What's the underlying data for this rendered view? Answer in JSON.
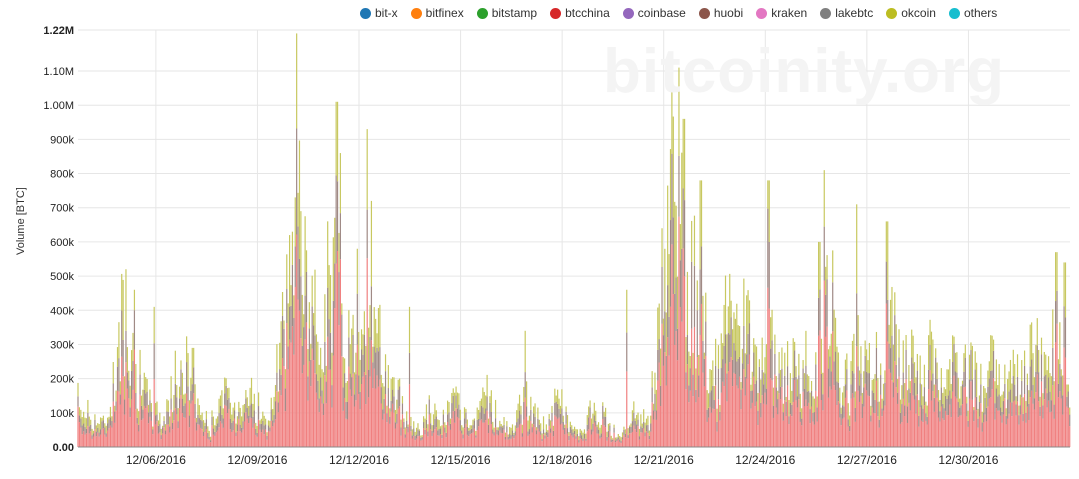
{
  "watermark": "bitcoinity.org",
  "chart_data": {
    "type": "bar",
    "stacked": true,
    "ylabel": "Volume [BTC]",
    "xlabel": "",
    "title": "",
    "ylim": [
      0,
      1220000
    ],
    "y_ticks": [
      "0.00",
      "100k",
      "200k",
      "300k",
      "400k",
      "500k",
      "600k",
      "700k",
      "800k",
      "900k",
      "1.00M",
      "1.10M",
      "1.22M"
    ],
    "x_ticks": [
      "12/06/2016",
      "12/09/2016",
      "12/12/2016",
      "12/15/2016",
      "12/18/2016",
      "12/21/2016",
      "12/24/2016",
      "12/27/2016",
      "12/30/2016"
    ],
    "x_tick_days": [
      4,
      7,
      10,
      13,
      16,
      19,
      22,
      25,
      28
    ],
    "x_range_days": [
      1.7,
      31.0
    ],
    "grid": true,
    "legend_position": "top",
    "legend": [
      {
        "name": "bit-x",
        "color": "#1f77b4"
      },
      {
        "name": "bitfinex",
        "color": "#ff7f0e"
      },
      {
        "name": "bitstamp",
        "color": "#2ca02c"
      },
      {
        "name": "btcchina",
        "color": "#d62728"
      },
      {
        "name": "coinbase",
        "color": "#9467bd"
      },
      {
        "name": "huobi",
        "color": "#8c564b"
      },
      {
        "name": "kraken",
        "color": "#e377c2"
      },
      {
        "name": "lakebtc",
        "color": "#7f7f7f"
      },
      {
        "name": "okcoin",
        "color": "#bcbd22"
      },
      {
        "name": "others",
        "color": "#17becf"
      }
    ],
    "stack_colors": {
      "btcchina": "#f08080",
      "huobi": "#a08a85",
      "okcoin": "#c8c860"
    },
    "hourly_envelope": [
      {
        "day": 1.7,
        "total": 150000
      },
      {
        "day": 2.0,
        "total": 110000
      },
      {
        "day": 2.5,
        "total": 70000
      },
      {
        "day": 2.9,
        "total": 300000
      },
      {
        "day": 3.1,
        "total": 480000
      },
      {
        "day": 3.4,
        "total": 250000
      },
      {
        "day": 3.8,
        "total": 140000
      },
      {
        "day": 4.2,
        "total": 90000
      },
      {
        "day": 4.6,
        "total": 220000
      },
      {
        "day": 4.9,
        "total": 260000
      },
      {
        "day": 5.3,
        "total": 130000
      },
      {
        "day": 5.6,
        "total": 60000
      },
      {
        "day": 5.9,
        "total": 180000
      },
      {
        "day": 6.3,
        "total": 120000
      },
      {
        "day": 6.7,
        "total": 200000
      },
      {
        "day": 7.0,
        "total": 130000
      },
      {
        "day": 7.3,
        "total": 60000
      },
      {
        "day": 7.6,
        "total": 250000
      },
      {
        "day": 7.9,
        "total": 450000
      },
      {
        "day": 8.2,
        "total": 800000
      },
      {
        "day": 8.4,
        "total": 520000
      },
      {
        "day": 8.7,
        "total": 400000
      },
      {
        "day": 9.0,
        "total": 480000
      },
      {
        "day": 9.3,
        "total": 650000
      },
      {
        "day": 9.5,
        "total": 420000
      },
      {
        "day": 9.8,
        "total": 320000
      },
      {
        "day": 10.1,
        "total": 550000
      },
      {
        "day": 10.4,
        "total": 380000
      },
      {
        "day": 10.6,
        "total": 320000
      },
      {
        "day": 10.9,
        "total": 200000
      },
      {
        "day": 11.2,
        "total": 150000
      },
      {
        "day": 11.5,
        "total": 90000
      },
      {
        "day": 11.8,
        "total": 60000
      },
      {
        "day": 12.1,
        "total": 130000
      },
      {
        "day": 12.4,
        "total": 70000
      },
      {
        "day": 12.8,
        "total": 150000
      },
      {
        "day": 13.1,
        "total": 90000
      },
      {
        "day": 13.4,
        "total": 60000
      },
      {
        "day": 13.8,
        "total": 180000
      },
      {
        "day": 14.1,
        "total": 90000
      },
      {
        "day": 14.5,
        "total": 50000
      },
      {
        "day": 14.9,
        "total": 160000
      },
      {
        "day": 15.2,
        "total": 100000
      },
      {
        "day": 15.5,
        "total": 70000
      },
      {
        "day": 15.9,
        "total": 160000
      },
      {
        "day": 16.3,
        "total": 60000
      },
      {
        "day": 16.6,
        "total": 40000
      },
      {
        "day": 17.0,
        "total": 150000
      },
      {
        "day": 17.4,
        "total": 60000
      },
      {
        "day": 17.8,
        "total": 40000
      },
      {
        "day": 18.2,
        "total": 120000
      },
      {
        "day": 18.6,
        "total": 90000
      },
      {
        "day": 19.0,
        "total": 650000
      },
      {
        "day": 19.2,
        "total": 950000
      },
      {
        "day": 19.4,
        "total": 780000
      },
      {
        "day": 19.7,
        "total": 520000
      },
      {
        "day": 20.0,
        "total": 500000
      },
      {
        "day": 20.3,
        "total": 300000
      },
      {
        "day": 20.6,
        "total": 220000
      },
      {
        "day": 20.9,
        "total": 450000
      },
      {
        "day": 21.2,
        "total": 300000
      },
      {
        "day": 21.5,
        "total": 420000
      },
      {
        "day": 21.8,
        "total": 260000
      },
      {
        "day": 22.1,
        "total": 340000
      },
      {
        "day": 22.4,
        "total": 230000
      },
      {
        "day": 22.7,
        "total": 280000
      },
      {
        "day": 23.0,
        "total": 220000
      },
      {
        "day": 23.3,
        "total": 330000
      },
      {
        "day": 23.6,
        "total": 260000
      },
      {
        "day": 23.9,
        "total": 520000
      },
      {
        "day": 24.2,
        "total": 250000
      },
      {
        "day": 24.5,
        "total": 200000
      },
      {
        "day": 24.8,
        "total": 330000
      },
      {
        "day": 25.1,
        "total": 220000
      },
      {
        "day": 25.4,
        "total": 280000
      },
      {
        "day": 25.7,
        "total": 480000
      },
      {
        "day": 26.0,
        "total": 230000
      },
      {
        "day": 26.3,
        "total": 260000
      },
      {
        "day": 26.6,
        "total": 200000
      },
      {
        "day": 26.9,
        "total": 300000
      },
      {
        "day": 27.2,
        "total": 210000
      },
      {
        "day": 27.5,
        "total": 260000
      },
      {
        "day": 27.8,
        "total": 220000
      },
      {
        "day": 28.1,
        "total": 240000
      },
      {
        "day": 28.4,
        "total": 200000
      },
      {
        "day": 28.7,
        "total": 250000
      },
      {
        "day": 29.0,
        "total": 180000
      },
      {
        "day": 29.3,
        "total": 220000
      },
      {
        "day": 29.6,
        "total": 200000
      },
      {
        "day": 29.9,
        "total": 350000
      },
      {
        "day": 30.2,
        "total": 260000
      },
      {
        "day": 30.5,
        "total": 420000
      },
      {
        "day": 30.8,
        "total": 220000
      },
      {
        "day": 31.0,
        "total": 160000
      }
    ],
    "peaks": [
      {
        "day": 3.1,
        "total": 520000
      },
      {
        "day": 3.35,
        "total": 460000
      },
      {
        "day": 3.95,
        "total": 410000
      },
      {
        "day": 5.1,
        "total": 290000
      },
      {
        "day": 7.95,
        "total": 620000
      },
      {
        "day": 8.15,
        "total": 1210000
      },
      {
        "day": 8.3,
        "total": 690000
      },
      {
        "day": 9.35,
        "total": 1010000
      },
      {
        "day": 9.45,
        "total": 860000
      },
      {
        "day": 9.95,
        "total": 580000
      },
      {
        "day": 10.25,
        "total": 930000
      },
      {
        "day": 10.35,
        "total": 720000
      },
      {
        "day": 11.5,
        "total": 410000
      },
      {
        "day": 14.9,
        "total": 340000
      },
      {
        "day": 17.9,
        "total": 460000
      },
      {
        "day": 18.95,
        "total": 640000
      },
      {
        "day": 19.25,
        "total": 1150000
      },
      {
        "day": 19.45,
        "total": 1110000
      },
      {
        "day": 19.6,
        "total": 960000
      },
      {
        "day": 20.1,
        "total": 780000
      },
      {
        "day": 22.1,
        "total": 780000
      },
      {
        "day": 23.75,
        "total": 810000
      },
      {
        "day": 23.6,
        "total": 600000
      },
      {
        "day": 24.7,
        "total": 710000
      },
      {
        "day": 25.6,
        "total": 660000
      },
      {
        "day": 30.6,
        "total": 570000
      },
      {
        "day": 30.85,
        "total": 540000
      }
    ]
  }
}
